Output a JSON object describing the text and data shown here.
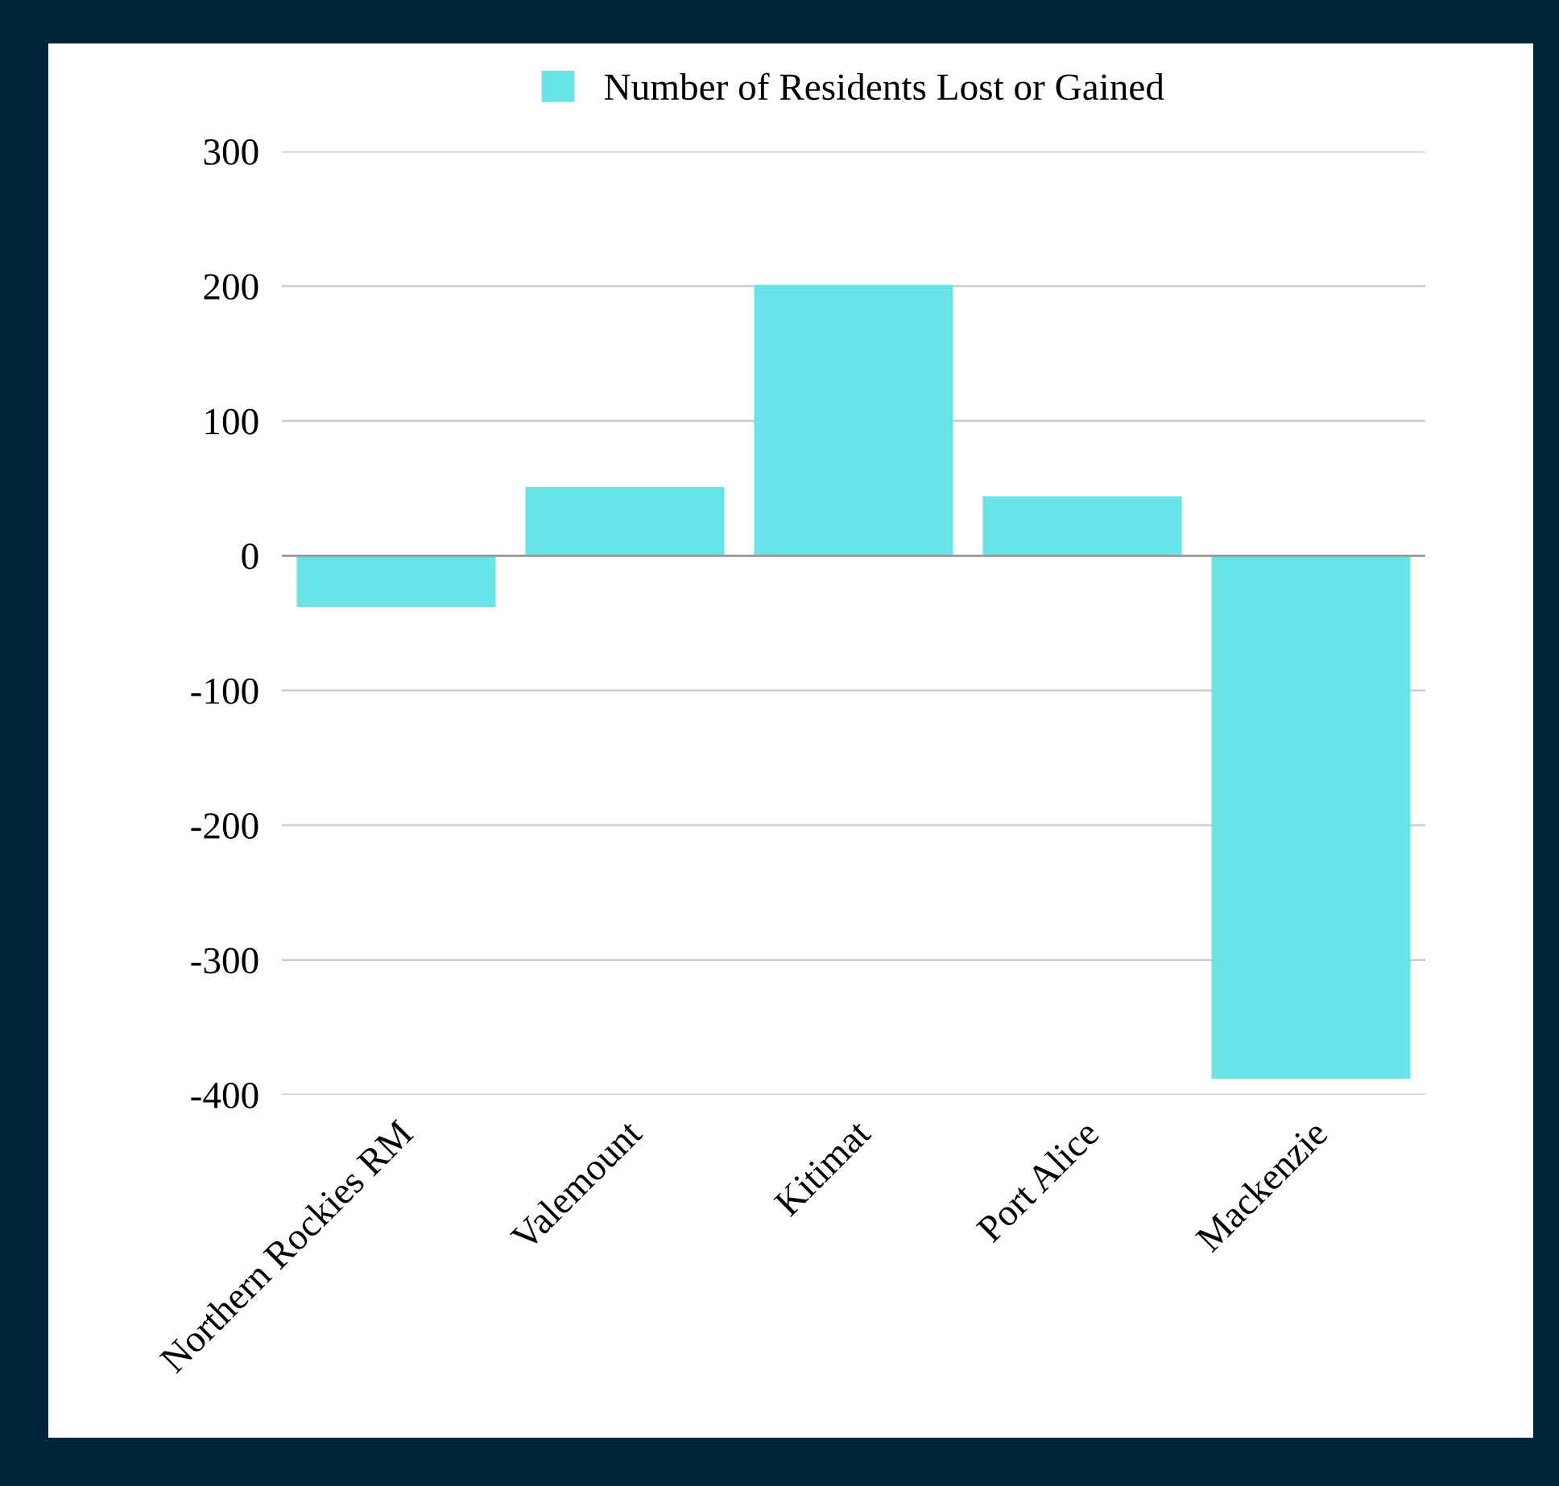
{
  "chart_data": {
    "type": "bar",
    "categories": [
      "Northern Rockies RM",
      "Valemount",
      "Kitimat",
      "Port Alice",
      "Mackenzie"
    ],
    "series": [
      {
        "name": "Number of Residents Lost or Gained",
        "color": "#68e4e8",
        "values": [
          -38,
          51,
          201,
          44,
          -388
        ]
      }
    ],
    "ylim": [
      -400,
      300
    ],
    "yticks": [
      -400,
      -300,
      -200,
      -100,
      0,
      100,
      200,
      300
    ],
    "grid": "y",
    "legend": "top"
  }
}
